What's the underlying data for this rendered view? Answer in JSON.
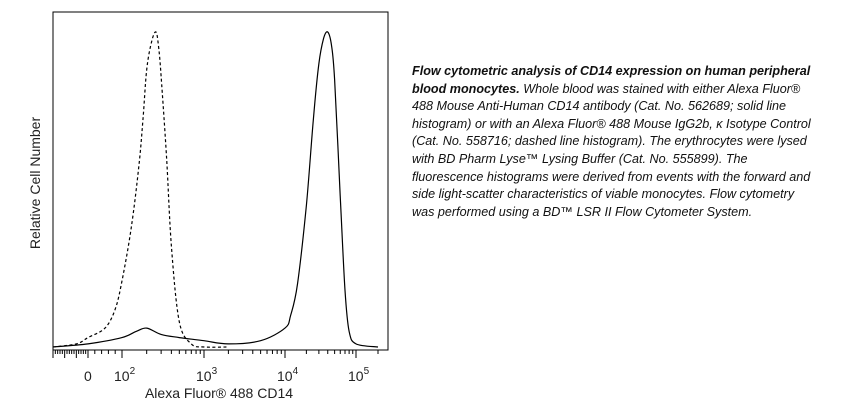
{
  "chart_data": {
    "type": "line",
    "title": "",
    "xlabel": "Alexa Fluor® 488 CD14",
    "ylabel": "Relative Cell Number",
    "x_scale": "biexponential",
    "xlim": [
      -300,
      200000
    ],
    "ylim": [
      0,
      1
    ],
    "x_ticks": [
      {
        "value": 0,
        "label": "0",
        "exp": ""
      },
      {
        "value": 100,
        "label": "10",
        "exp": "2"
      },
      {
        "value": 1000,
        "label": "10",
        "exp": "3"
      },
      {
        "value": 10000,
        "label": "10",
        "exp": "4"
      },
      {
        "value": 100000,
        "label": "10",
        "exp": "5"
      }
    ],
    "grid": false,
    "legend": "none",
    "series": [
      {
        "style": "dashed",
        "x": [
          -300,
          -100,
          0,
          50,
          80,
          100,
          130,
          160,
          180,
          200,
          230,
          260,
          280,
          300,
          350,
          400,
          500,
          700,
          1000,
          2000
        ],
        "y": [
          0,
          0.01,
          0.03,
          0.06,
          0.12,
          0.21,
          0.38,
          0.57,
          0.72,
          0.88,
          0.97,
          1.0,
          0.95,
          0.86,
          0.6,
          0.32,
          0.08,
          0.01,
          0,
          0
        ]
      },
      {
        "style": "solid",
        "x": [
          -300,
          0,
          100,
          150,
          200,
          300,
          500,
          1000,
          2000,
          5000,
          10000,
          12000,
          15000,
          20000,
          25000,
          30000,
          35000,
          40000,
          45000,
          50000,
          60000,
          70000,
          80000,
          100000,
          200000
        ],
        "y": [
          0,
          0.01,
          0.03,
          0.05,
          0.06,
          0.04,
          0.03,
          0.02,
          0.01,
          0.02,
          0.06,
          0.1,
          0.2,
          0.45,
          0.72,
          0.9,
          0.98,
          1.0,
          0.96,
          0.85,
          0.48,
          0.18,
          0.05,
          0.01,
          0
        ]
      }
    ]
  },
  "caption": {
    "bold": "Flow cytometric analysis of CD14 expression on human peripheral blood monocytes.",
    "body": " Whole blood was stained with either Alexa Fluor® 488 Mouse Anti-Human CD14 antibody (Cat. No. 562689; solid line histogram) or with an Alexa Fluor® 488 Mouse IgG2b, κ Isotype Control (Cat. No. 558716; dashed line histogram). The erythrocytes were lysed with BD Pharm Lyse™ Lysing Buffer (Cat. No. 555899). The fluorescence histograms were derived from events with the forward and side light-scatter characteristics of viable monocytes. Flow cytometry was performed using a BD™ LSR II Flow Cytometer System."
  },
  "colors": {
    "line": "#000000",
    "axis": "#000000",
    "text": "#111111"
  }
}
